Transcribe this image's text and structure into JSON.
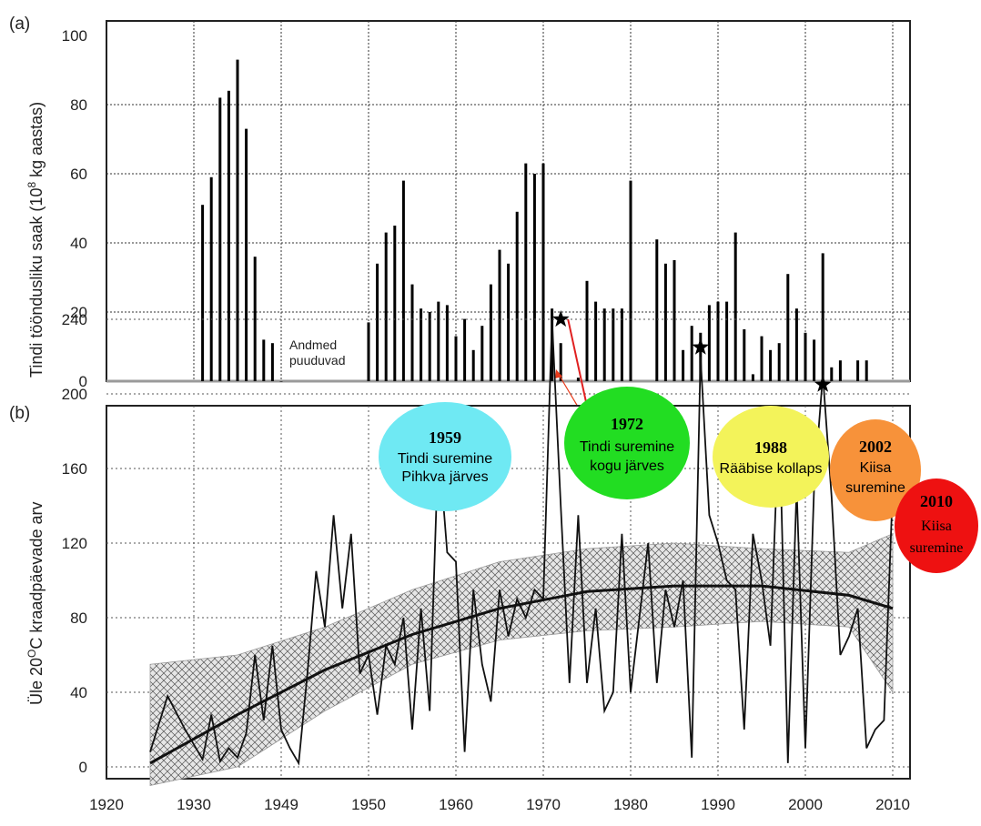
{
  "panel_a": {
    "label": "(a)",
    "y_axis_label": "Tindi tööndusliku saak (10",
    "y_axis_label_sup": "8",
    "y_axis_label_tail": " kg aastas)",
    "note_line1": "Andmed",
    "note_line2": "puuduvad"
  },
  "panel_b": {
    "label": "(b)",
    "y_axis_label_pre": "Üle 20",
    "y_axis_label_sup": "O",
    "y_axis_label_post": "C  kraadpäevade arv"
  },
  "x_axis": {
    "ticks": [
      "1920",
      "1930",
      "1949",
      "1950",
      "1960",
      "1970",
      "1980",
      "1990",
      "2000",
      "2010"
    ]
  },
  "bubbles": [
    {
      "year": "1959",
      "line1": "Tindi suremine",
      "line2": "Pihkva järves",
      "color": "#6fe9f3"
    },
    {
      "year": "1972",
      "line1": "Tindi suremine",
      "line2": "kogu järves",
      "color": "#22dd22"
    },
    {
      "year": "1988",
      "line1": "Rääbise kollaps",
      "line2": "",
      "color": "#f3f35a"
    },
    {
      "year": "2002",
      "line1": "Kiisa",
      "line2": "suremine",
      "color": "#f7923a"
    },
    {
      "year": "2010",
      "line1": "Kiisa",
      "line2": "suremine",
      "color": "#ee1111"
    }
  ],
  "chart_data": [
    {
      "type": "bar",
      "ylabel": "Tindi tööndusliku saak (10^8 kg aastas)",
      "ylim": [
        0,
        100
      ],
      "yticks": [
        0,
        20,
        40,
        60,
        80,
        100
      ],
      "x": [
        1931,
        1932,
        1933,
        1934,
        1935,
        1936,
        1937,
        1938,
        1939,
        1940,
        1950,
        1951,
        1952,
        1953,
        1954,
        1955,
        1956,
        1957,
        1958,
        1959,
        1960,
        1961,
        1962,
        1963,
        1964,
        1965,
        1966,
        1967,
        1968,
        1969,
        1970,
        1971,
        1972,
        1974,
        1975,
        1976,
        1977,
        1978,
        1979,
        1980,
        1983,
        1984,
        1985,
        1986,
        1987,
        1988,
        1989,
        1990,
        1991,
        1992,
        1993,
        1994,
        1995,
        1996,
        1997,
        1998,
        1999,
        2000,
        2001,
        2002,
        2003,
        2004,
        2006,
        2007
      ],
      "values": [
        51,
        59,
        82,
        84,
        93,
        73,
        36,
        12,
        11,
        0,
        17,
        34,
        43,
        45,
        58,
        28,
        21,
        20,
        23,
        22,
        13,
        18,
        9,
        16,
        28,
        38,
        34,
        49,
        63,
        60,
        63,
        21,
        11,
        1,
        29,
        23,
        21,
        21,
        21,
        58,
        41,
        34,
        35,
        9,
        16,
        14,
        22,
        23,
        23,
        43,
        15,
        2,
        13,
        9,
        11,
        31,
        21,
        14,
        12,
        37,
        4,
        6,
        6,
        6
      ],
      "annotations": [
        "Andmed puuduvad"
      ]
    },
    {
      "type": "line",
      "ylabel": "Üle 20OC  kraadpäevade arv",
      "ylim": [
        -15,
        260
      ],
      "yticks": [
        0,
        40,
        80,
        120,
        160,
        200,
        240
      ],
      "x": [
        1925,
        1927,
        1929,
        1931,
        1932,
        1933,
        1934,
        1935,
        1936,
        1937,
        1938,
        1939,
        1940,
        1941,
        1942,
        1943,
        1944,
        1945,
        1946,
        1947,
        1948,
        1949,
        1950,
        1951,
        1952,
        1953,
        1954,
        1955,
        1956,
        1957,
        1958,
        1959,
        1960,
        1961,
        1962,
        1963,
        1964,
        1965,
        1966,
        1967,
        1968,
        1969,
        1970,
        1971,
        1972,
        1973,
        1974,
        1975,
        1976,
        1977,
        1978,
        1979,
        1980,
        1981,
        1982,
        1983,
        1984,
        1985,
        1986,
        1987,
        1988,
        1989,
        1990,
        1991,
        1992,
        1993,
        1994,
        1995,
        1996,
        1997,
        1998,
        1999,
        2000,
        2001,
        2002,
        2003,
        2004,
        2005,
        2006,
        2007,
        2008,
        2009,
        2010
      ],
      "values": [
        8,
        38,
        20,
        4,
        28,
        3,
        10,
        5,
        18,
        60,
        25,
        65,
        20,
        10,
        2,
        50,
        105,
        75,
        135,
        85,
        125,
        50,
        60,
        28,
        65,
        55,
        80,
        20,
        85,
        30,
        175,
        115,
        110,
        8,
        95,
        55,
        35,
        95,
        70,
        90,
        80,
        95,
        90,
        240,
        140,
        45,
        135,
        45,
        85,
        30,
        40,
        125,
        40,
        80,
        120,
        45,
        95,
        75,
        100,
        5,
        220,
        135,
        120,
        100,
        95,
        20,
        125,
        100,
        65,
        190,
        2,
        150,
        10,
        150,
        210,
        145,
        60,
        70,
        85,
        10,
        20,
        25,
        150
      ],
      "trend": [
        2,
        28,
        52,
        71,
        85,
        94,
        97,
        97,
        92,
        85
      ],
      "trend_x": [
        1925,
        1935,
        1945,
        1955,
        1965,
        1975,
        1985,
        1995,
        2005,
        2010
      ],
      "band_upper": [
        55,
        60,
        75,
        95,
        110,
        117,
        120,
        117,
        115,
        125
      ],
      "band_lower": [
        -10,
        0,
        30,
        55,
        68,
        73,
        75,
        78,
        75,
        40
      ],
      "stars": [
        {
          "x": 1959,
          "y": 188
        },
        {
          "x": 1972,
          "y": 240
        },
        {
          "x": 1988,
          "y": 225
        },
        {
          "x": 2002,
          "y": 205
        },
        {
          "x": 2010,
          "y": 175
        }
      ]
    }
  ]
}
